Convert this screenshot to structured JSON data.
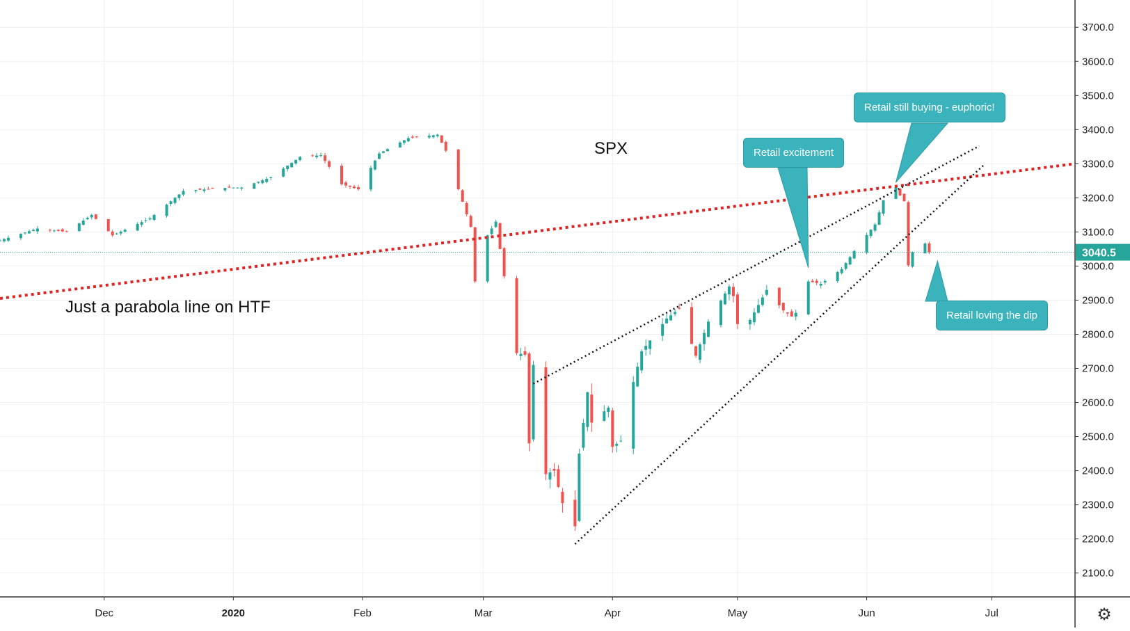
{
  "chart_data": {
    "type": "candlestick",
    "symbol_label": "SPX",
    "last_price": 3040.5,
    "last_price_label": "3040.5",
    "y_axis": {
      "min": 2030,
      "max": 3780,
      "ticks": [
        2100,
        2200,
        2300,
        2400,
        2500,
        2600,
        2700,
        2800,
        2900,
        3000,
        3100,
        3200,
        3300,
        3400,
        3500,
        3600,
        3700
      ],
      "tick_labels": [
        "2100.0",
        "2200.0",
        "2300.0",
        "2400.0",
        "2500.0",
        "2600.0",
        "2700.0",
        "2800.0",
        "2900.0",
        "3000.0",
        "3100.0",
        "3200.0",
        "3300.0",
        "3400.0",
        "3500.0",
        "3600.0",
        "3700.0"
      ]
    },
    "x_axis": {
      "start": "2019-11-06",
      "end": "2020-07-21",
      "ticks": [
        {
          "date": "2019-12-01",
          "label": "Dec",
          "bold": false
        },
        {
          "date": "2020-01-01",
          "label": "2020",
          "bold": true
        },
        {
          "date": "2020-02-01",
          "label": "Feb",
          "bold": false
        },
        {
          "date": "2020-03-01",
          "label": "Mar",
          "bold": false
        },
        {
          "date": "2020-04-01",
          "label": "Apr",
          "bold": false
        },
        {
          "date": "2020-05-01",
          "label": "May",
          "bold": false
        },
        {
          "date": "2020-06-01",
          "label": "Jun",
          "bold": false
        },
        {
          "date": "2020-07-01",
          "label": "Jul",
          "bold": false
        }
      ]
    },
    "price_path": [
      [
        "2019-11-06",
        3075
      ],
      [
        "2019-11-15",
        3110
      ],
      [
        "2019-11-22",
        3100
      ],
      [
        "2019-11-28",
        3150
      ],
      [
        "2019-12-03",
        3090
      ],
      [
        "2019-12-12",
        3140
      ],
      [
        "2019-12-20",
        3220
      ],
      [
        "2019-12-31",
        3230
      ],
      [
        "2020-01-03",
        3230
      ],
      [
        "2020-01-10",
        3260
      ],
      [
        "2020-01-17",
        3320
      ],
      [
        "2020-01-22",
        3325
      ],
      [
        "2020-01-27",
        3240
      ],
      [
        "2020-01-31",
        3225
      ],
      [
        "2020-02-05",
        3330
      ],
      [
        "2020-02-12",
        3375
      ],
      [
        "2020-02-19",
        3385
      ],
      [
        "2020-02-21",
        3338
      ],
      [
        "2020-02-24",
        3225
      ],
      [
        "2020-02-27",
        3115
      ],
      [
        "2020-02-28",
        2955
      ],
      [
        "2020-03-02",
        3090
      ],
      [
        "2020-03-04",
        3130
      ],
      [
        "2020-03-06",
        2970
      ],
      [
        "2020-03-09",
        2745
      ],
      [
        "2020-03-11",
        2740
      ],
      [
        "2020-03-12",
        2480
      ],
      [
        "2020-03-13",
        2710
      ],
      [
        "2020-03-16",
        2390
      ],
      [
        "2020-03-18",
        2400
      ],
      [
        "2020-03-20",
        2305
      ],
      [
        "2020-03-23",
        2237
      ],
      [
        "2020-03-24",
        2450
      ],
      [
        "2020-03-26",
        2630
      ],
      [
        "2020-03-27",
        2541
      ],
      [
        "2020-03-31",
        2585
      ],
      [
        "2020-04-01",
        2470
      ],
      [
        "2020-04-03",
        2488
      ],
      [
        "2020-04-06",
        2660
      ],
      [
        "2020-04-08",
        2750
      ],
      [
        "2020-04-14",
        2846
      ],
      [
        "2020-04-17",
        2875
      ],
      [
        "2020-04-21",
        2737
      ],
      [
        "2020-04-24",
        2837
      ],
      [
        "2020-04-29",
        2940
      ],
      [
        "2020-04-30",
        2912
      ],
      [
        "2020-05-01",
        2830
      ],
      [
        "2020-05-04",
        2842
      ],
      [
        "2020-05-08",
        2930
      ],
      [
        "2020-05-12",
        2870
      ],
      [
        "2020-05-14",
        2852
      ],
      [
        "2020-05-15",
        2863
      ],
      [
        "2020-05-18",
        2955
      ],
      [
        "2020-05-21",
        2948
      ],
      [
        "2020-05-26",
        2991
      ],
      [
        "2020-05-29",
        3044
      ],
      [
        "2020-06-03",
        3122
      ],
      [
        "2020-06-05",
        3193
      ],
      [
        "2020-06-08",
        3232
      ],
      [
        "2020-06-09",
        3207
      ],
      [
        "2020-06-10",
        3190
      ],
      [
        "2020-06-11",
        3002
      ],
      [
        "2020-06-12",
        3041
      ],
      [
        "2020-06-15",
        3066
      ],
      [
        "2020-06-16",
        3040
      ]
    ],
    "trend_lines": [
      {
        "name": "parabola",
        "style": "red-dotted",
        "points": [
          [
            "2019-11-06",
            2905
          ],
          [
            "2020-07-21",
            3300
          ]
        ]
      },
      {
        "name": "channel-upper",
        "style": "black-dotted",
        "points": [
          [
            "2020-03-13",
            2655
          ],
          [
            "2020-06-28",
            3352
          ]
        ]
      },
      {
        "name": "channel-lower",
        "style": "black-dotted",
        "points": [
          [
            "2020-03-23",
            2185
          ],
          [
            "2020-06-29",
            3295
          ]
        ]
      }
    ],
    "annotations": [
      {
        "id": "parabola-note",
        "text": "Just a parabola line on HTF",
        "style": "plain"
      },
      {
        "id": "excitement",
        "text": "Retail excitement",
        "style": "callout"
      },
      {
        "id": "euphoric",
        "text": "Retail still buying - euphoric!",
        "style": "callout"
      },
      {
        "id": "dip",
        "text": "Retail loving the dip",
        "style": "callout"
      }
    ]
  },
  "colors": {
    "up": "#26a69a",
    "down": "#ef5350",
    "grid": "#eef0f3",
    "axis_line": "#333333",
    "last_price": "#26a69a",
    "parabola_line": "#e02424",
    "channel_line": "#111111",
    "callout_bg": "#3ab3bd"
  },
  "icons": {
    "settings": "gear-icon"
  }
}
